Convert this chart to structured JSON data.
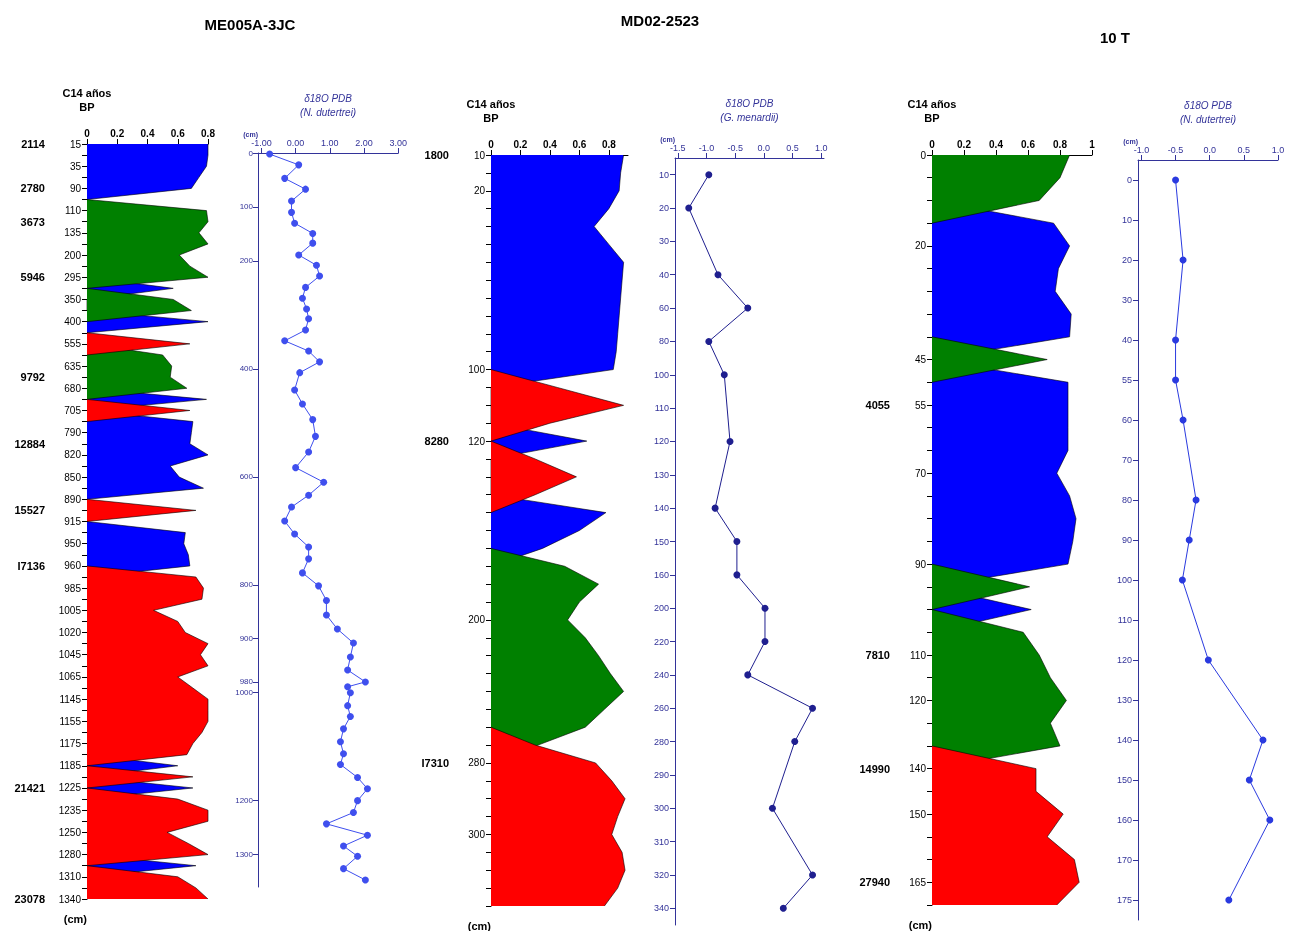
{
  "chart_data": [
    {
      "type": "area",
      "title": "ME005A-3JC",
      "orientation": "horizontal",
      "ylabel": "(cm)",
      "y2label": "C14 años\nBP",
      "xlim": [
        0,
        0.8
      ],
      "xticks": [
        0,
        0.2,
        0.4,
        0.6,
        0.8
      ],
      "categories": [
        "15",
        null,
        "35",
        null,
        "90",
        null,
        "110",
        null,
        "135",
        null,
        "200",
        null,
        "295",
        null,
        "350",
        null,
        "400",
        null,
        "555",
        null,
        "635",
        null,
        "680",
        null,
        "705",
        null,
        "790",
        null,
        "820",
        null,
        "850",
        null,
        "890",
        null,
        "915",
        null,
        "950",
        null,
        "960",
        null,
        "985",
        null,
        "1005",
        null,
        "1020",
        null,
        "1045",
        null,
        "1065",
        null,
        "1145",
        null,
        "1155",
        null,
        "1175",
        null,
        "1185",
        null,
        "1225",
        null,
        "1235",
        null,
        "1250",
        null,
        "1280",
        null,
        "1310",
        null,
        "1340"
      ],
      "y2_categories": [
        "2114",
        null,
        null,
        null,
        "2780",
        null,
        null,
        "3673",
        null,
        null,
        null,
        null,
        "5946",
        null,
        null,
        null,
        null,
        null,
        null,
        null,
        null,
        "9792",
        null,
        null,
        null,
        null,
        null,
        "12884",
        null,
        null,
        null,
        null,
        null,
        "15527",
        null,
        null,
        null,
        null,
        "I7136",
        null,
        null,
        null,
        null,
        null,
        null,
        null,
        null,
        null,
        null,
        null,
        null,
        null,
        null,
        null,
        null,
        null,
        null,
        null,
        "21421",
        null,
        null,
        null,
        null,
        null,
        null,
        null,
        null,
        null,
        "23078"
      ],
      "series": [
        {
          "color": "#0000ff",
          "values": [
            0.8,
            0.8,
            0.79,
            0.74,
            0.69,
            0,
            null,
            null,
            null,
            null,
            null,
            null,
            0,
            0.57,
            0,
            0,
            0.8,
            0,
            null,
            null,
            null,
            null,
            0,
            0.79,
            0,
            0.7,
            0.69,
            0.68,
            0.8,
            0.55,
            0.61,
            0.77,
            0,
            null,
            0,
            0.65,
            0.64,
            0.67,
            0.68,
            0,
            null,
            null,
            null,
            null,
            null,
            null,
            null,
            null,
            null,
            null,
            null,
            null,
            null,
            null,
            null,
            0,
            0.6,
            0,
            0.7,
            0,
            null,
            null,
            null,
            null,
            0,
            0.72,
            0,
            null,
            null
          ]
        },
        {
          "color": "#008000",
          "values": [
            null,
            null,
            null,
            null,
            null,
            0,
            0.79,
            0.8,
            0.74,
            0.8,
            0.61,
            0.68,
            0.8,
            0,
            0.57,
            0.69,
            0,
            null,
            0,
            0.5,
            0.56,
            0.55,
            0.66,
            0,
            null,
            null,
            null,
            null,
            null,
            null,
            null,
            null,
            null,
            null,
            null,
            null,
            null,
            null,
            null,
            null,
            null,
            null,
            null,
            null,
            null,
            null,
            null,
            null,
            null,
            null,
            null,
            null,
            null,
            null,
            null,
            null,
            null,
            null,
            null,
            null,
            null,
            null,
            null,
            null,
            null,
            null,
            null,
            null,
            null
          ]
        },
        {
          "color": "#ff0000",
          "values": [
            null,
            null,
            null,
            null,
            null,
            null,
            null,
            null,
            null,
            null,
            null,
            null,
            null,
            null,
            null,
            null,
            null,
            0,
            0.68,
            0,
            null,
            null,
            null,
            0,
            0.68,
            0,
            null,
            null,
            null,
            null,
            null,
            null,
            0,
            0.72,
            0,
            null,
            null,
            null,
            0,
            0.72,
            0.77,
            0.76,
            0.44,
            0.6,
            0.65,
            0.8,
            0.75,
            0.8,
            0.6,
            0.7,
            0.8,
            0.8,
            0.8,
            0.76,
            0.7,
            0.66,
            0,
            0.7,
            0,
            0.6,
            0.8,
            0.8,
            0.53,
            0.67,
            0.8,
            0,
            0.6,
            0.72,
            0.8
          ]
        }
      ]
    },
    {
      "type": "line",
      "orientation": "horizontal",
      "xlabel": "δ18O PDB\n(N. dutertrei)",
      "ylabel": "(cm)",
      "marker": "circle",
      "xlim": [
        -1.1,
        3
      ],
      "xticks": [
        {
          "value": -1,
          "label": "-1.00"
        },
        {
          "value": 0,
          "label": "0.00"
        },
        {
          "value": 1,
          "label": "1.00"
        },
        {
          "value": 2,
          "label": "2.00"
        },
        {
          "value": 3,
          "label": "3.00"
        }
      ],
      "ylim": [
        1360,
        0
      ],
      "yticks": [
        0,
        100,
        200,
        400,
        600,
        800,
        900,
        980,
        1000,
        1200,
        1300
      ],
      "x": [
        2,
        22,
        47,
        67,
        89,
        110,
        130,
        149,
        167,
        189,
        208,
        228,
        249,
        269,
        289,
        307,
        328,
        348,
        367,
        387,
        407,
        439,
        465,
        494,
        525,
        554,
        583,
        610,
        634,
        656,
        682,
        706,
        730,
        752,
        778,
        802,
        829,
        856,
        882,
        908,
        934,
        958,
        980,
        989,
        1000,
        1024,
        1044,
        1067,
        1091,
        1113,
        1133,
        1157,
        1178,
        1200,
        1222,
        1243,
        1264,
        1284,
        1303,
        1326,
        1347
      ],
      "series": [
        {
          "color": "#3f4fee",
          "values": [
            -0.76,
            0.09,
            -0.32,
            0.29,
            -0.12,
            -0.12,
            -0.03,
            0.5,
            0.5,
            0.09,
            0.61,
            0.7,
            0.29,
            0.2,
            0.32,
            0.38,
            0.29,
            -0.32,
            0.38,
            0.7,
            0.12,
            -0.03,
            0.2,
            0.5,
            0.58,
            0.38,
            0,
            0.82,
            0.38,
            -0.12,
            -0.32,
            -0.03,
            0.38,
            0.38,
            0.2,
            0.67,
            0.9,
            0.9,
            1.22,
            1.69,
            1.6,
            1.52,
            2.04,
            1.52,
            1.6,
            1.52,
            1.6,
            1.4,
            1.31,
            1.4,
            1.31,
            1.81,
            2.1,
            1.81,
            1.69,
            0.9,
            2.1,
            1.4,
            1.81,
            1.4,
            2.04
          ]
        }
      ]
    },
    {
      "type": "area",
      "title": "MD02-2523",
      "orientation": "horizontal",
      "ylabel": "(cm)",
      "y2label": "C14 años\nBP",
      "xlim": [
        0,
        0.93
      ],
      "xticks": [
        0,
        0.2,
        0.4,
        0.6,
        0.8
      ],
      "categories": [
        "10",
        null,
        "20",
        null,
        null,
        null,
        null,
        null,
        null,
        null,
        null,
        null,
        "100",
        null,
        null,
        null,
        "120",
        null,
        null,
        null,
        null,
        null,
        null,
        null,
        null,
        null,
        "200",
        null,
        null,
        null,
        null,
        null,
        null,
        null,
        "280",
        null,
        null,
        null,
        "300",
        null,
        null,
        null,
        null
      ],
      "y2_categories": [
        "1800",
        null,
        null,
        null,
        null,
        null,
        null,
        null,
        null,
        null,
        null,
        null,
        null,
        null,
        null,
        null,
        "8280",
        null,
        null,
        null,
        null,
        null,
        null,
        null,
        null,
        null,
        null,
        null,
        null,
        null,
        null,
        null,
        null,
        null,
        "I7310",
        null,
        null,
        null,
        null,
        null,
        null,
        null,
        null
      ],
      "series": [
        {
          "color": "#0000ff",
          "values": [
            0.9,
            0.88,
            0.87,
            0.8,
            0.7,
            0.8,
            0.9,
            0.89,
            0.88,
            0.87,
            0.86,
            0.85,
            0.83,
            0,
            0,
            0,
            0.65,
            0,
            0,
            0,
            0.78,
            0.6,
            0.35,
            0,
            null,
            null,
            null,
            null,
            null,
            null,
            null,
            null,
            null,
            null,
            null,
            null,
            null,
            null,
            null,
            null,
            null,
            null,
            null
          ]
        },
        {
          "color": "#008000",
          "values": [
            null,
            null,
            null,
            null,
            null,
            null,
            null,
            null,
            null,
            null,
            null,
            null,
            null,
            null,
            null,
            null,
            null,
            null,
            null,
            null,
            null,
            null,
            0,
            0.5,
            0.73,
            0.6,
            0.52,
            0.64,
            0.73,
            0.81,
            0.9,
            0.77,
            0.64,
            0.32,
            0,
            null,
            null,
            null,
            null,
            null,
            null,
            null,
            null
          ]
        },
        {
          "color": "#ff0000",
          "values": [
            null,
            null,
            null,
            null,
            null,
            null,
            null,
            null,
            null,
            null,
            null,
            null,
            0,
            0.45,
            0.9,
            0.4,
            0,
            0.3,
            0.58,
            0.3,
            0,
            null,
            null,
            null,
            null,
            null,
            null,
            null,
            null,
            null,
            null,
            null,
            0,
            0.3,
            0.71,
            0.82,
            0.91,
            0.86,
            0.82,
            0.89,
            0.91,
            0.86,
            0.77
          ]
        }
      ]
    },
    {
      "type": "line",
      "orientation": "horizontal",
      "xlabel": "δ18O PDB\n(G. menardii)",
      "ylabel": "(cm)",
      "marker": "circle",
      "xlim": [
        -1.55,
        1.05
      ],
      "xticks": [
        {
          "value": -1.5,
          "label": "-1.5"
        },
        {
          "value": -1,
          "label": "-1.0"
        },
        {
          "value": -0.5,
          "label": "-0.5"
        },
        {
          "value": 0,
          "label": "0.0"
        },
        {
          "value": 0.5,
          "label": "0.5"
        },
        {
          "value": 1,
          "label": "1.0"
        }
      ],
      "categories": [
        "10",
        "20",
        "30",
        "40",
        "60",
        "80",
        "100",
        "110",
        "120",
        "130",
        "140",
        "150",
        "160",
        "200",
        "220",
        "240",
        "260",
        "280",
        "290",
        "300",
        "310",
        "320",
        "340"
      ],
      "series": [
        {
          "color": "#1f1f8f",
          "values": [
            -0.96,
            -1.31,
            null,
            -0.8,
            -0.28,
            -0.96,
            -0.69,
            null,
            -0.59,
            null,
            -0.85,
            -0.47,
            -0.47,
            0.02,
            0.02,
            -0.28,
            0.85,
            0.54,
            null,
            0.15,
            null,
            0.85,
            0.34
          ]
        }
      ]
    },
    {
      "type": "area",
      "title": "10 T",
      "orientation": "horizontal",
      "ylabel": "(cm)",
      "y2label": "C14 años\nBP",
      "xlim": [
        0,
        1
      ],
      "xticks": [
        0,
        0.2,
        0.4,
        0.6,
        0.8,
        1
      ],
      "categories": [
        "0",
        null,
        null,
        null,
        "20",
        null,
        null,
        null,
        null,
        "45",
        null,
        "55",
        null,
        null,
        "70",
        null,
        null,
        null,
        "90",
        null,
        null,
        null,
        "110",
        null,
        "120",
        null,
        null,
        "140",
        null,
        "150",
        null,
        null,
        "165",
        null
      ],
      "y2_categories": [
        null,
        null,
        null,
        null,
        null,
        null,
        null,
        null,
        null,
        null,
        null,
        "4055",
        null,
        null,
        null,
        null,
        null,
        null,
        null,
        null,
        null,
        null,
        "7810",
        null,
        null,
        null,
        null,
        "14990",
        null,
        null,
        null,
        null,
        "27940",
        null
      ],
      "series": [
        {
          "color": "#0000ff",
          "values": [
            null,
            null,
            0,
            0.76,
            0.86,
            0.79,
            0.77,
            0.87,
            0.86,
            0,
            0.85,
            0.85,
            0.85,
            0.85,
            0.78,
            0.86,
            0.9,
            0.88,
            0.85,
            0,
            0.62,
            0,
            null,
            null,
            null,
            null,
            null,
            null,
            null,
            null,
            null,
            null,
            null,
            null
          ]
        },
        {
          "color": "#008000",
          "values": [
            0.86,
            0.8,
            0.67,
            0,
            null,
            null,
            null,
            null,
            0,
            0.72,
            0,
            null,
            null,
            null,
            null,
            null,
            null,
            null,
            0,
            0.61,
            0,
            0.57,
            0.67,
            0.74,
            0.84,
            0.74,
            0.8,
            0,
            null,
            null,
            null,
            null,
            null,
            null
          ]
        },
        {
          "color": "#ff0000",
          "values": [
            null,
            null,
            null,
            null,
            null,
            null,
            null,
            null,
            null,
            null,
            null,
            null,
            null,
            null,
            null,
            null,
            null,
            null,
            null,
            null,
            null,
            null,
            null,
            null,
            null,
            null,
            0,
            0.65,
            0.65,
            0.82,
            0.72,
            0.89,
            0.92,
            0.78
          ]
        }
      ]
    },
    {
      "type": "line",
      "orientation": "horizontal",
      "xlabel": "δ18O PDB\n(N. dutertrei)",
      "ylabel": "(cm)",
      "marker": "circle",
      "xlim": [
        -1.05,
        1
      ],
      "xticks": [
        {
          "value": -1,
          "label": "-1.0"
        },
        {
          "value": -0.5,
          "label": "-0.5"
        },
        {
          "value": 0,
          "label": "0.0"
        },
        {
          "value": 0.5,
          "label": "0.5"
        },
        {
          "value": 1,
          "label": "1.0"
        }
      ],
      "categories": [
        "0",
        "10",
        "20",
        "30",
        "40",
        "55",
        "60",
        "70",
        "80",
        "90",
        "100",
        "110",
        "120",
        "130",
        "140",
        "150",
        "160",
        "170",
        "175"
      ],
      "series": [
        {
          "color": "#2a3adf",
          "values": [
            -0.5,
            null,
            -0.39,
            null,
            -0.5,
            -0.5,
            -0.39,
            null,
            -0.2,
            -0.3,
            -0.4,
            null,
            -0.02,
            null,
            0.78,
            0.58,
            0.88,
            null,
            0.28
          ]
        }
      ]
    }
  ]
}
